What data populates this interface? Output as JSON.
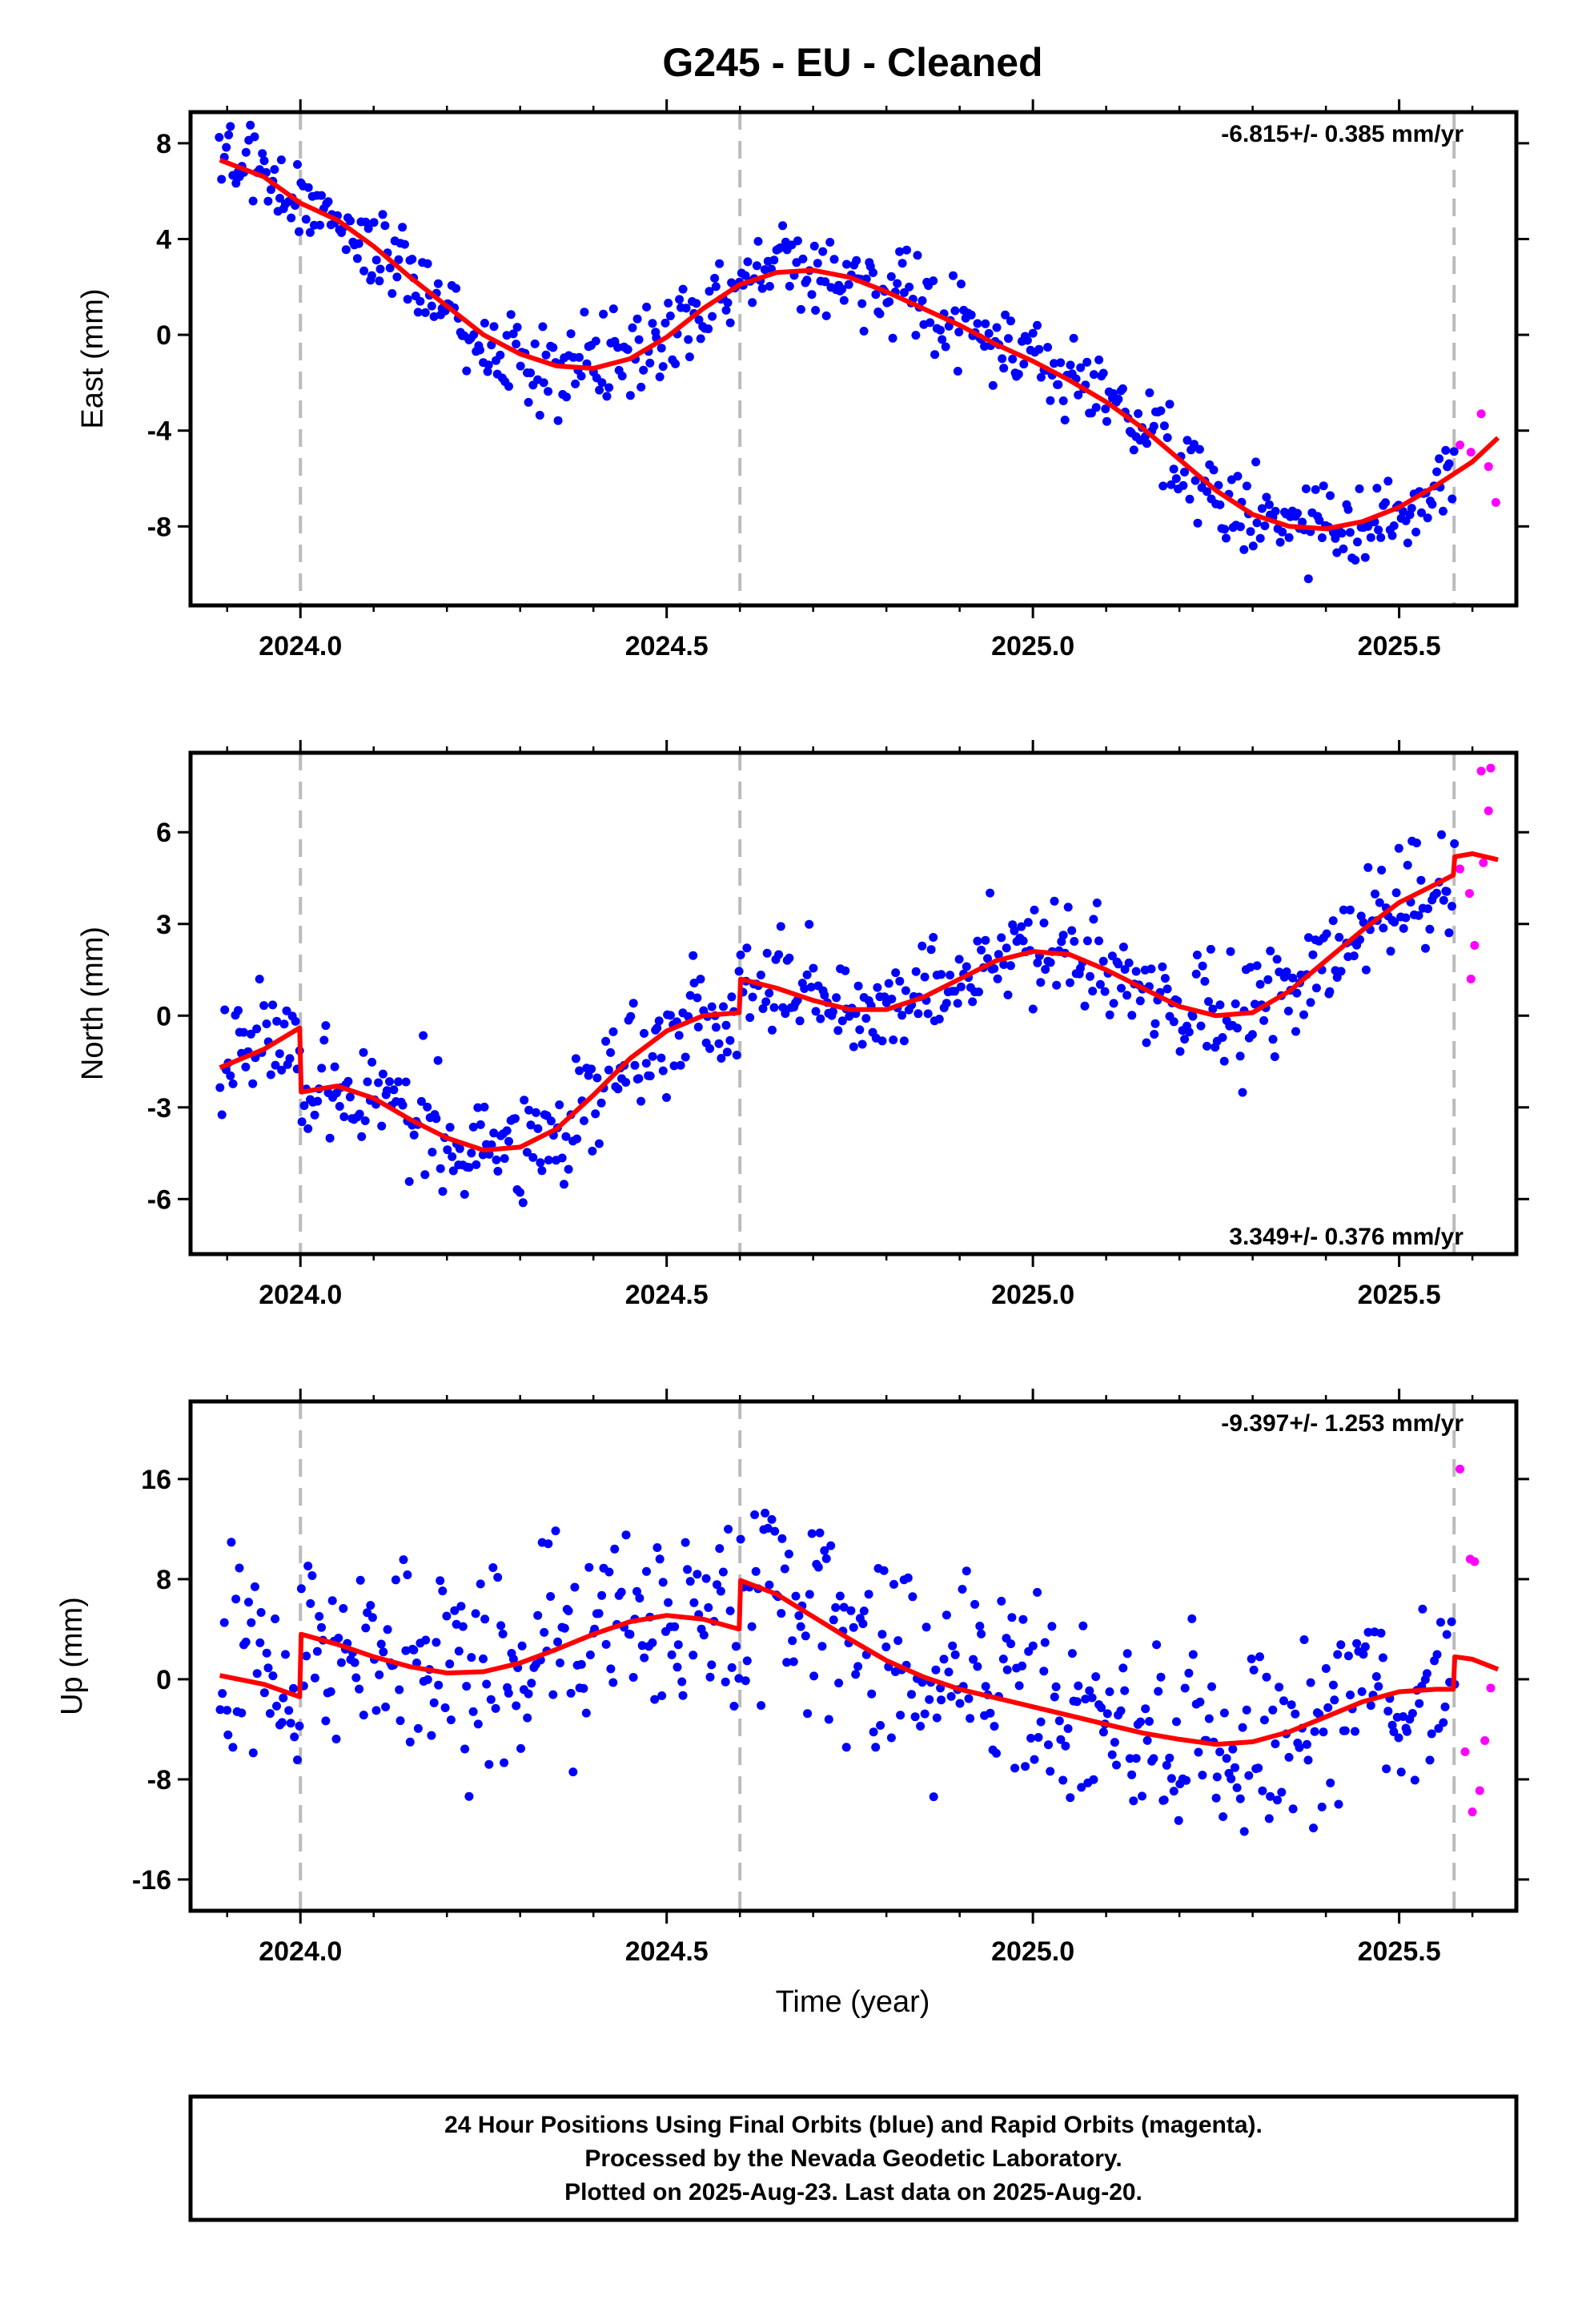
{
  "title": "G245  - EU - Cleaned",
  "x_axis_label": "Time (year)",
  "footer": {
    "line1": "24 Hour Positions Using Final Orbits (blue) and Rapid Orbits (magenta).",
    "line2": "Processed by the Nevada Geodetic Laboratory.",
    "line3": "Plotted on 2025-Aug-23. Last data on 2025-Aug-20."
  },
  "colors": {
    "final_orbits": "#0000ff",
    "rapid_orbits": "#ff00ff",
    "model_fit": "#ff0000",
    "step_lines": "#bbbbbb"
  },
  "chart_data": [
    {
      "type": "scatter",
      "component": "East",
      "ylabel": "East (mm)",
      "rate_label": "-6.815+/- 0.385 mm/yr",
      "rate_position": "top-right",
      "xlim": [
        2023.85,
        2025.66
      ],
      "ylim": [
        -11.3,
        9.3
      ],
      "xticks": [
        2024.0,
        2024.5,
        2025.0,
        2025.5
      ],
      "xtick_labels": [
        "2024.0",
        "2024.5",
        "2025.0",
        "2025.5"
      ],
      "yticks": [
        8,
        4,
        0,
        -4,
        -8
      ],
      "ytick_labels": [
        "8",
        "4",
        "0",
        "-4",
        "-8"
      ],
      "step_epochs": [
        2024.0,
        2024.6,
        2025.575
      ],
      "model": {
        "offset": 1.9,
        "rate": -6.815,
        "ref_epoch": 2024.75,
        "annual_sin": 0,
        "annual_cos": 0,
        "semiannual_sin": -0.8,
        "semiannual_cos": 0,
        "steps": [],
        "scatter_sigma": 0.9,
        "x": [
          2023.89,
          2023.95,
          2024.0,
          2024.05,
          2024.1,
          2024.15,
          2024.2,
          2024.25,
          2024.3,
          2024.35,
          2024.4,
          2024.45,
          2024.5,
          2024.55,
          2024.6,
          2024.65,
          2024.7,
          2024.75,
          2024.8,
          2024.85,
          2024.9,
          2024.95,
          2025.0,
          2025.05,
          2025.1,
          2025.15,
          2025.2,
          2025.25,
          2025.3,
          2025.35,
          2025.4,
          2025.45,
          2025.5,
          2025.55,
          2025.6,
          2025.635
        ],
        "y": [
          7.3,
          6.6,
          5.5,
          4.8,
          3.7,
          2.4,
          1.2,
          0.0,
          -0.8,
          -1.3,
          -1.4,
          -1.0,
          -0.1,
          1.1,
          2.1,
          2.6,
          2.7,
          2.4,
          1.8,
          1.1,
          0.4,
          -0.4,
          -1.1,
          -1.9,
          -2.8,
          -3.9,
          -5.2,
          -6.5,
          -7.5,
          -8.0,
          -8.1,
          -7.8,
          -7.2,
          -6.3,
          -5.3,
          -4.3
        ]
      },
      "rapid_points": [
        {
          "x": 2025.583,
          "y": -4.6
        },
        {
          "x": 2025.598,
          "y": -4.9
        },
        {
          "x": 2025.612,
          "y": -3.3
        },
        {
          "x": 2025.622,
          "y": -5.5
        },
        {
          "x": 2025.632,
          "y": -7.0
        }
      ]
    },
    {
      "type": "scatter",
      "component": "North",
      "ylabel": "North (mm)",
      "rate_label": "3.349+/- 0.376 mm/yr",
      "rate_position": "bottom-right",
      "xlim": [
        2023.85,
        2025.66
      ],
      "ylim": [
        -7.8,
        8.6
      ],
      "xticks": [
        2024.0,
        2024.5,
        2025.0,
        2025.5
      ],
      "xtick_labels": [
        "2024.0",
        "2024.5",
        "2025.0",
        "2025.5"
      ],
      "yticks": [
        6,
        3,
        0,
        -3,
        -6
      ],
      "ytick_labels": [
        "6",
        "3",
        "0",
        "-3",
        "-6"
      ],
      "step_epochs": [
        2024.0,
        2024.6,
        2025.575
      ],
      "model": {
        "scatter_sigma": 0.9,
        "x": [
          2023.89,
          2023.95,
          2023.999,
          2024.001,
          2024.05,
          2024.1,
          2024.15,
          2024.2,
          2024.25,
          2024.3,
          2024.35,
          2024.4,
          2024.45,
          2024.5,
          2024.55,
          2024.599,
          2024.601,
          2024.65,
          2024.7,
          2024.75,
          2024.8,
          2024.85,
          2024.9,
          2024.95,
          2025.0,
          2025.05,
          2025.1,
          2025.15,
          2025.2,
          2025.25,
          2025.3,
          2025.35,
          2025.4,
          2025.45,
          2025.5,
          2025.55,
          2025.574,
          2025.576,
          2025.6,
          2025.635
        ],
        "y": [
          -1.7,
          -1.1,
          -0.4,
          -2.5,
          -2.3,
          -2.7,
          -3.4,
          -4.0,
          -4.4,
          -4.3,
          -3.7,
          -2.6,
          -1.4,
          -0.5,
          0.0,
          0.1,
          1.2,
          0.9,
          0.5,
          0.2,
          0.2,
          0.6,
          1.2,
          1.8,
          2.1,
          2.0,
          1.5,
          0.9,
          0.3,
          0.0,
          0.1,
          0.8,
          1.8,
          2.8,
          3.7,
          4.3,
          4.6,
          5.2,
          5.3,
          5.1
        ]
      },
      "rapid_points": [
        {
          "x": 2025.583,
          "y": 4.8
        },
        {
          "x": 2025.596,
          "y": 4.0
        },
        {
          "x": 2025.603,
          "y": 2.3
        },
        {
          "x": 2025.598,
          "y": 1.2
        },
        {
          "x": 2025.612,
          "y": 8.0
        },
        {
          "x": 2025.625,
          "y": 8.1
        },
        {
          "x": 2025.622,
          "y": 6.7
        },
        {
          "x": 2025.615,
          "y": 5.0
        }
      ]
    },
    {
      "type": "scatter",
      "component": "Up",
      "ylabel": "Up (mm)",
      "rate_label": "-9.397+/- 1.253 mm/yr",
      "rate_position": "top-right",
      "xlim": [
        2023.85,
        2025.66
      ],
      "ylim": [
        -18.5,
        22.2
      ],
      "xticks": [
        2024.0,
        2024.5,
        2025.0,
        2025.5
      ],
      "xtick_labels": [
        "2024.0",
        "2024.5",
        "2025.0",
        "2025.5"
      ],
      "yticks": [
        16,
        8,
        0,
        -8,
        -16
      ],
      "ytick_labels": [
        "16",
        "8",
        "0",
        "-8",
        "-16"
      ],
      "step_epochs": [
        2024.0,
        2024.6,
        2025.575
      ],
      "model": {
        "scatter_sigma": 3.8,
        "x": [
          2023.89,
          2023.95,
          2023.999,
          2024.001,
          2024.05,
          2024.1,
          2024.15,
          2024.2,
          2024.25,
          2024.3,
          2024.35,
          2024.4,
          2024.45,
          2024.5,
          2024.55,
          2024.599,
          2024.601,
          2024.65,
          2024.7,
          2024.75,
          2024.8,
          2024.85,
          2024.9,
          2024.95,
          2025.0,
          2025.05,
          2025.1,
          2025.15,
          2025.2,
          2025.25,
          2025.3,
          2025.35,
          2025.4,
          2025.45,
          2025.5,
          2025.55,
          2025.574,
          2025.576,
          2025.6,
          2025.635
        ],
        "y": [
          0.3,
          -0.4,
          -1.4,
          3.6,
          2.8,
          1.8,
          1.0,
          0.5,
          0.6,
          1.3,
          2.4,
          3.6,
          4.6,
          5.1,
          4.8,
          4.0,
          7.9,
          6.8,
          5.0,
          3.2,
          1.5,
          0.2,
          -0.8,
          -1.5,
          -2.2,
          -2.9,
          -3.6,
          -4.3,
          -4.8,
          -5.2,
          -5.0,
          -4.2,
          -3.0,
          -1.8,
          -1.0,
          -0.8,
          -0.8,
          1.8,
          1.6,
          0.8
        ]
      },
      "rapid_points": [
        {
          "x": 2025.583,
          "y": 16.8
        },
        {
          "x": 2025.597,
          "y": 9.6
        },
        {
          "x": 2025.603,
          "y": 9.4
        },
        {
          "x": 2025.59,
          "y": -5.8
        },
        {
          "x": 2025.61,
          "y": -8.9
        },
        {
          "x": 2025.6,
          "y": -10.6
        },
        {
          "x": 2025.617,
          "y": -4.9
        },
        {
          "x": 2025.625,
          "y": -0.7
        }
      ]
    }
  ]
}
